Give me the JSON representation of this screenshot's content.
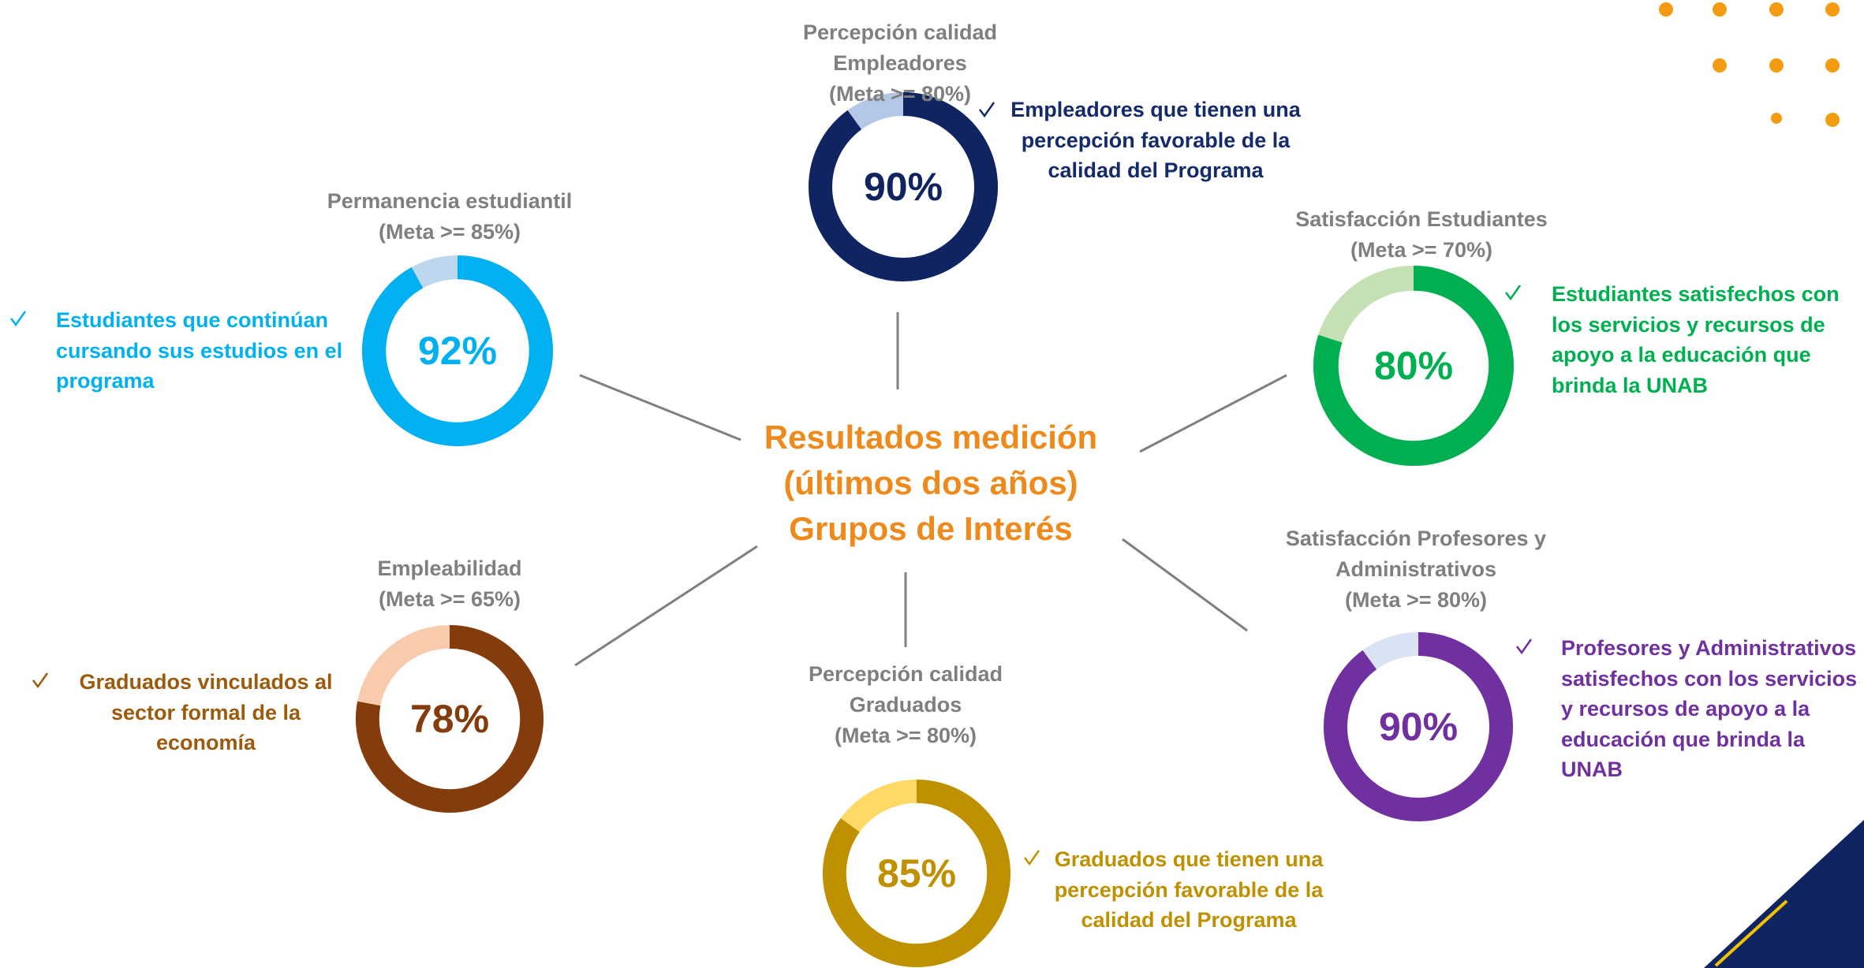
{
  "title": [
    "Resultados medición",
    "(últimos dos años)",
    "Grupos de Interés"
  ],
  "title_color": "#ee8a1c",
  "chart_data": [
    {
      "type": "donut",
      "title": "Percepción calidad Empleadores",
      "subtitle": "(Meta >= 80%)",
      "values": [
        90
      ],
      "value_labels": [
        "90%"
      ],
      "color": "#0f2461",
      "track_color": "#b4c7e7",
      "annotation": "Empleadores que tienen una percepción favorable de la calidad del Programa",
      "text_color": "#142a6b"
    },
    {
      "type": "donut",
      "title": "Permanencia estudiantil",
      "subtitle": "(Meta >= 85%)",
      "values": [
        92
      ],
      "value_labels": [
        "92%"
      ],
      "color": "#00b0f0",
      "track_color": "#bdd7ee",
      "annotation": "Estudiantes que continúan cursando sus estudios en el programa",
      "text_color": "#00b0f0"
    },
    {
      "type": "donut",
      "title": "Satisfacción Estudiantes",
      "subtitle": "(Meta >= 70%)",
      "values": [
        80
      ],
      "value_labels": [
        "80%"
      ],
      "color": "#00b050",
      "track_color": "#c5e0b4",
      "annotation": "Estudiantes satisfechos con los servicios y recursos de apoyo a la educación que brinda la UNAB",
      "text_color": "#00b050"
    },
    {
      "type": "donut",
      "title": "Empleabilidad",
      "subtitle": "(Meta >= 65%)",
      "values": [
        78
      ],
      "value_labels": [
        "78%"
      ],
      "color": "#843c0c",
      "track_color": "#f8cbad",
      "annotation": "Graduados vinculados al sector formal de la economía",
      "text_color": "#9c5a0c"
    },
    {
      "type": "donut",
      "title": "Percepción calidad Graduados",
      "subtitle": "(Meta >= 80%)",
      "values": [
        85
      ],
      "value_labels": [
        "85%"
      ],
      "color": "#bf9000",
      "track_color": "#ffd966",
      "annotation": "Graduados que tienen una percepción favorable de la calidad del Programa",
      "text_color": "#bf9000"
    },
    {
      "type": "donut",
      "title": "Satisfacción Profesores y Administrativos",
      "subtitle": "(Meta >= 80%)",
      "values": [
        90
      ],
      "value_labels": [
        "90%"
      ],
      "color": "#7030a0",
      "track_color": "#dae3f3",
      "annotation": "Profesores y Administrativos satisfechos con los servicios y recursos de apoyo a la educación que brinda la UNAB",
      "text_color": "#7030a0"
    }
  ]
}
